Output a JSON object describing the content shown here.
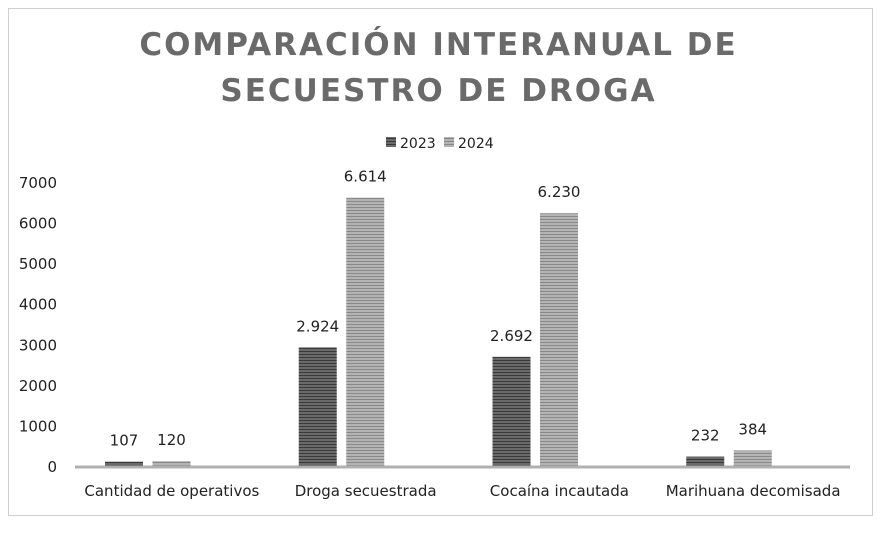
{
  "chart_data": {
    "type": "bar",
    "title_lines": [
      "COMPARACIÓN INTERANUAL DE",
      "SECUESTRO DE DROGA"
    ],
    "categories": [
      "Cantidad de operativos",
      "Droga secuestrada",
      "Cocaína incautada",
      "Marihuana decomisada"
    ],
    "series": [
      {
        "name": "2023",
        "values": [
          107,
          2924,
          2692,
          232
        ],
        "labels": [
          "107",
          "2.924",
          "2.692",
          "232"
        ],
        "color": "#555555"
      },
      {
        "name": "2024",
        "values": [
          120,
          6614,
          6230,
          384
        ],
        "labels": [
          "120",
          "6.614",
          "6.230",
          "384"
        ],
        "color": "#9a9a9a"
      }
    ],
    "yticks": [
      "0",
      "1000",
      "2000",
      "3000",
      "4000",
      "5000",
      "6000",
      "7000"
    ],
    "ylim": [
      0,
      7000
    ],
    "grid": false,
    "legend": "top-center",
    "xlabel": "",
    "ylabel": ""
  }
}
